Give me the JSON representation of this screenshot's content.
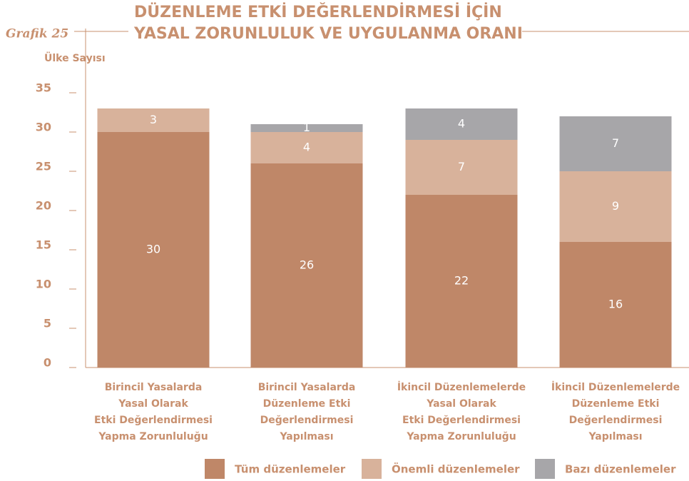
{
  "chart_data": {
    "type": "stacked_bar",
    "figure_label": "Grafik 25",
    "title": [
      "DÜZENLEME ETKİ DEĞERLENDİRMESİ İÇİN",
      "YASAL ZORUNLULUK VE UYGULANMA ORANI"
    ],
    "y_label": "Ülke Sayısı",
    "categories": [
      [
        "Birincil Yasalarda",
        "Yasal Olarak",
        "Etki Değerlendirmesi",
        "Yapma Zorunluluğu"
      ],
      [
        "Birincil Yasalarda",
        "Düzenleme Etki",
        "Değerlendirmesi",
        "Yapılması"
      ],
      [
        "İkincil Düzenlemelerde",
        "Yasal Olarak",
        "Etki Değerlendirmesi",
        "Yapma Zorunluluğu"
      ],
      [
        "İkincil Düzenlemelerde",
        "Düzenleme Etki",
        "Değerlendirmesi",
        "Yapılması"
      ]
    ],
    "series": [
      {
        "name": "Tüm düzenlemeler",
        "color": "#bf8768",
        "values": [
          30,
          26,
          22,
          16
        ]
      },
      {
        "name": "Önemli düzenlemeler",
        "color": "#d8b29b",
        "values": [
          3,
          4,
          7,
          9
        ]
      },
      {
        "name": "Bazı düzenlemeler",
        "color": "#a7a6a9",
        "values": [
          0,
          1,
          4,
          7
        ]
      }
    ],
    "ylim": [
      0,
      35
    ],
    "yticks": [
      0,
      5,
      10,
      15,
      20,
      25,
      30,
      35
    ]
  }
}
